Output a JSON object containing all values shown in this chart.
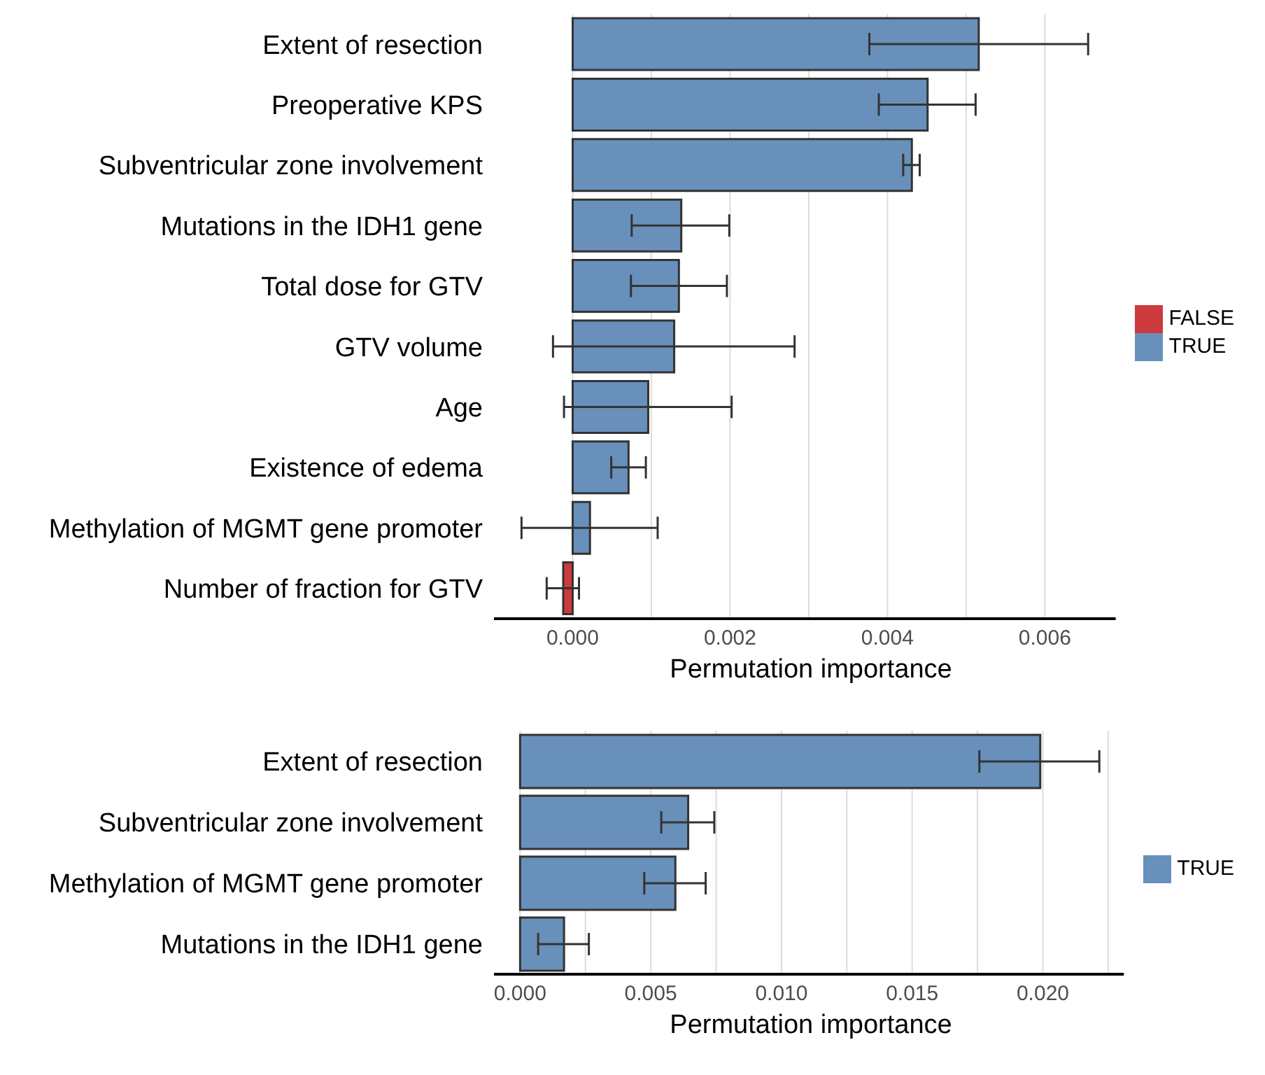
{
  "chart_data": [
    {
      "type": "bar",
      "orientation": "horizontal",
      "stacked": true,
      "xlabel": "Permutation importance",
      "categories": [
        "Extent of resection",
        "Preoperative KPS",
        "Subventricular zone involvement",
        "Mutations in the IDH1 gene",
        "Total dose for GTV",
        "GTV volume",
        "Age",
        "Existence of edema",
        "Methylation of MGMT gene promoter",
        "Number of fraction for GTV"
      ],
      "series": [
        {
          "name": "FALSE",
          "color": "#cc3a3d",
          "values": [
            null,
            null,
            null,
            null,
            null,
            null,
            null,
            null,
            null,
            -0.00012
          ],
          "errors": [
            null,
            null,
            null,
            null,
            null,
            null,
            null,
            null,
            null,
            [
              -0.00033,
              8e-05
            ]
          ]
        },
        {
          "name": "TRUE",
          "color": "#6890bb",
          "values": [
            0.00516,
            0.00451,
            0.00431,
            0.00138,
            0.00135,
            0.00129,
            0.00096,
            0.00071,
            0.00022,
            null
          ],
          "errors": [
            [
              0.00377,
              0.00655
            ],
            [
              0.00389,
              0.00512
            ],
            [
              0.0042,
              0.00441
            ],
            [
              0.00075,
              0.00199
            ],
            [
              0.00074,
              0.00196
            ],
            [
              -0.00025,
              0.00282
            ],
            [
              -0.00011,
              0.00202
            ],
            [
              0.00049,
              0.00093
            ],
            [
              -0.00065,
              0.00108
            ],
            null
          ]
        }
      ],
      "xlim": [
        -0.001,
        0.0069
      ],
      "xticks": [
        {
          "value": 0,
          "label": "0.000"
        },
        {
          "value": 0.001,
          "label": null
        },
        {
          "value": 0.002,
          "label": "0.002"
        },
        {
          "value": 0.003,
          "label": null
        },
        {
          "value": 0.004,
          "label": "0.004"
        },
        {
          "value": 0.005,
          "label": null
        },
        {
          "value": 0.006,
          "label": "0.006"
        }
      ],
      "grid": "x",
      "legend": "right"
    },
    {
      "type": "bar",
      "orientation": "horizontal",
      "xlabel": "Permutation importance",
      "categories": [
        "Extent of resection",
        "Subventricular zone involvement",
        "Methylation of MGMT gene promoter",
        "Mutations in the IDH1 gene"
      ],
      "series": [
        {
          "name": "TRUE",
          "color": "#6890bb",
          "values": [
            0.0199,
            0.00643,
            0.00594,
            0.00168
          ],
          "errors": [
            [
              0.01757,
              0.02216
            ],
            [
              0.0054,
              0.00743
            ],
            [
              0.00475,
              0.0071
            ],
            [
              0.00069,
              0.00263
            ]
          ]
        }
      ],
      "xlim": [
        -0.001,
        0.0231
      ],
      "xticks": [
        {
          "value": 0,
          "label": "0.000"
        },
        {
          "value": 0.0025,
          "label": null
        },
        {
          "value": 0.005,
          "label": "0.005"
        },
        {
          "value": 0.0075,
          "label": null
        },
        {
          "value": 0.01,
          "label": "0.010"
        },
        {
          "value": 0.0125,
          "label": null
        },
        {
          "value": 0.015,
          "label": "0.015"
        },
        {
          "value": 0.0175,
          "label": null
        },
        {
          "value": 0.02,
          "label": "0.020"
        },
        {
          "value": 0.0225,
          "label": null
        }
      ],
      "grid": "x",
      "legend": "right"
    }
  ]
}
